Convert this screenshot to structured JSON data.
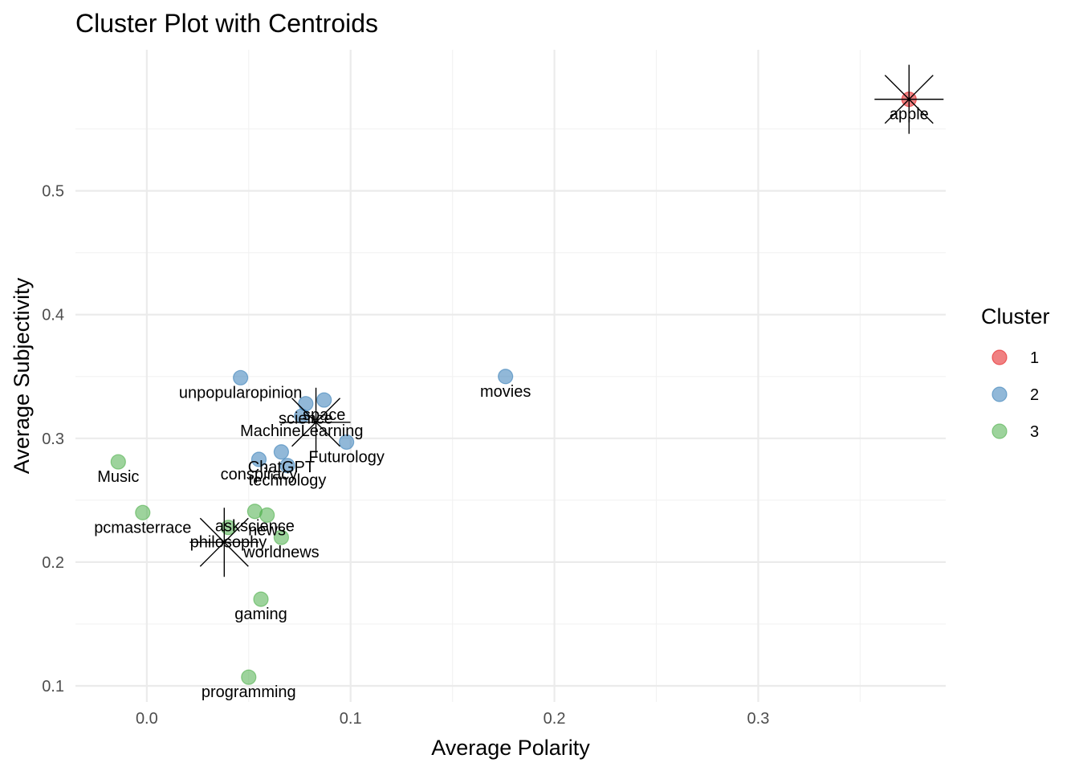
{
  "chart_data": {
    "type": "scatter",
    "title": "Cluster Plot with Centroids",
    "xlabel": "Average Polarity",
    "ylabel": "Average Subjectivity",
    "xlim": [
      -0.035,
      0.392
    ],
    "ylim": [
      0.087,
      0.614
    ],
    "x_ticks": [
      0.0,
      0.1,
      0.2,
      0.3
    ],
    "x_tick_labels": [
      "0.0",
      "0.1",
      "0.2",
      "0.3"
    ],
    "y_ticks": [
      0.1,
      0.2,
      0.3,
      0.4,
      0.5
    ],
    "y_tick_labels": [
      "0.1",
      "0.2",
      "0.3",
      "0.4",
      "0.5"
    ],
    "grid": true,
    "legend": {
      "title": "Cluster",
      "position": "right",
      "entries": [
        {
          "label": "1",
          "color": "#e41a1c"
        },
        {
          "label": "2",
          "color": "#377eb8"
        },
        {
          "label": "3",
          "color": "#4daf4a"
        }
      ]
    },
    "points": [
      {
        "label": "apple",
        "x": 0.374,
        "y": 0.574,
        "cluster": "1"
      },
      {
        "label": "unpopularopinion",
        "x": 0.046,
        "y": 0.349,
        "cluster": "2"
      },
      {
        "label": "movies",
        "x": 0.176,
        "y": 0.35,
        "cluster": "2"
      },
      {
        "label": "space",
        "x": 0.087,
        "y": 0.331,
        "cluster": "2"
      },
      {
        "label": "science",
        "x": 0.078,
        "y": 0.328,
        "cluster": "2"
      },
      {
        "label": "MachineLearning",
        "x": 0.076,
        "y": 0.318,
        "cluster": "2"
      },
      {
        "label": "Futurology",
        "x": 0.098,
        "y": 0.297,
        "cluster": "2"
      },
      {
        "label": "ChatGPT",
        "x": 0.066,
        "y": 0.289,
        "cluster": "2"
      },
      {
        "label": "conspiracy",
        "x": 0.055,
        "y": 0.283,
        "cluster": "2"
      },
      {
        "label": "technology",
        "x": 0.069,
        "y": 0.278,
        "cluster": "2"
      },
      {
        "label": "Music",
        "x": -0.014,
        "y": 0.281,
        "cluster": "3"
      },
      {
        "label": "pcmasterrace",
        "x": -0.002,
        "y": 0.24,
        "cluster": "3"
      },
      {
        "label": "askscience",
        "x": 0.053,
        "y": 0.241,
        "cluster": "3"
      },
      {
        "label": "news",
        "x": 0.059,
        "y": 0.238,
        "cluster": "3"
      },
      {
        "label": "philosophy",
        "x": 0.04,
        "y": 0.228,
        "cluster": "3"
      },
      {
        "label": "worldnews",
        "x": 0.066,
        "y": 0.22,
        "cluster": "3"
      },
      {
        "label": "gaming",
        "x": 0.056,
        "y": 0.17,
        "cluster": "3"
      },
      {
        "label": "programming",
        "x": 0.05,
        "y": 0.107,
        "cluster": "3"
      }
    ],
    "centroids": [
      {
        "cluster": "1",
        "x": 0.374,
        "y": 0.574
      },
      {
        "cluster": "2",
        "x": 0.083,
        "y": 0.313
      },
      {
        "cluster": "3",
        "x": 0.038,
        "y": 0.216
      }
    ]
  }
}
